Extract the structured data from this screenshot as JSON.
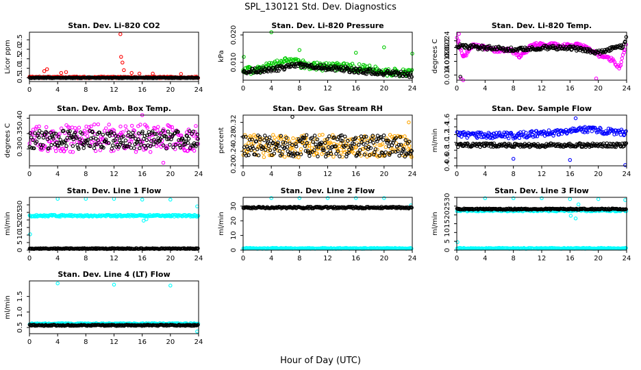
{
  "figure": {
    "title": "SPL_130121  Std. Dev. Diagnostics",
    "xlabel": "Hour of Day (UTC)"
  },
  "colors": {
    "red": "#ff0000",
    "green": "#00cc00",
    "magenta": "#ff00ff",
    "orange": "#ffa500",
    "blue": "#0000ff",
    "cyan": "#00ffff",
    "black": "#000000"
  },
  "chart_data": [
    {
      "id": "co2",
      "type": "scatter",
      "title": "Stan. Dev. Li-820 CO2",
      "ylabel": "Licor ppm",
      "xlim": [
        0,
        24
      ],
      "ylim": [
        0.3,
        2.9
      ],
      "xticks": [
        0,
        4,
        8,
        12,
        16,
        20,
        24
      ],
      "yticks": [
        0.5,
        1.0,
        1.5,
        2.0,
        2.5
      ],
      "ytick_labels": [
        "0.5",
        "1.0",
        "1.5",
        "2.0",
        "2.5"
      ],
      "series": [
        {
          "color": "red",
          "base": 0.52,
          "noise": 0.04,
          "spikes": [
            [
              2.1,
              0.85
            ],
            [
              2.5,
              0.95
            ],
            [
              4.5,
              0.75
            ],
            [
              5.2,
              0.8
            ],
            [
              12.9,
              2.8
            ],
            [
              13.0,
              1.6
            ],
            [
              13.2,
              1.3
            ],
            [
              13.4,
              0.9
            ],
            [
              14.5,
              0.75
            ],
            [
              15.6,
              0.72
            ],
            [
              17.5,
              0.72
            ],
            [
              21.5,
              0.7
            ]
          ]
        },
        {
          "color": "black",
          "base": 0.5,
          "noise": 0.02,
          "spikes": []
        }
      ]
    },
    {
      "id": "pressure",
      "type": "scatter",
      "title": "Stan. Dev. Li-820 Pressure",
      "ylabel": "kPa",
      "xlim": [
        0,
        24
      ],
      "ylim": [
        0.0035,
        0.021
      ],
      "xticks": [
        0,
        4,
        8,
        12,
        16,
        20,
        24
      ],
      "yticks": [
        0.01,
        0.02
      ],
      "ytick_labels": [
        "0.010",
        "0.020"
      ],
      "series": [
        {
          "color": "green",
          "profile": [
            [
              0,
              0.0065
            ],
            [
              3,
              0.008
            ],
            [
              6,
              0.0105
            ],
            [
              10,
              0.0085
            ],
            [
              16,
              0.0082
            ],
            [
              20,
              0.0065
            ],
            [
              24,
              0.0062
            ]
          ],
          "noise": 0.0015,
          "spikes": [
            [
              0.1,
              0.012
            ],
            [
              4.0,
              0.021
            ],
            [
              8.0,
              0.0145
            ],
            [
              16.0,
              0.0135
            ],
            [
              20.0,
              0.0155
            ],
            [
              24.0,
              0.0132
            ]
          ]
        },
        {
          "color": "black",
          "profile": [
            [
              0,
              0.0065
            ],
            [
              4,
              0.0075
            ],
            [
              8,
              0.009
            ],
            [
              12,
              0.008
            ],
            [
              16,
              0.0072
            ],
            [
              20,
              0.006
            ],
            [
              24,
              0.0055
            ]
          ],
          "noise": 0.001,
          "spikes": []
        }
      ]
    },
    {
      "id": "temp",
      "type": "scatter",
      "title": "Stan. Dev. Li-820 Temp.",
      "ylabel": "degrees C",
      "xlim": [
        0,
        24
      ],
      "ylim": [
        0.0125,
        0.0265
      ],
      "xticks": [
        0,
        4,
        8,
        12,
        16,
        20,
        24
      ],
      "yticks": [
        0.014,
        0.018,
        0.02,
        0.022,
        0.024
      ],
      "ytick_labels": [
        "0.014",
        "0.018",
        "0.020",
        "0.022",
        "0.024"
      ],
      "series": [
        {
          "color": "magenta",
          "profile": [
            [
              0,
              0.025
            ],
            [
              1,
              0.019
            ],
            [
              2,
              0.0225
            ],
            [
              4,
              0.022
            ],
            [
              6,
              0.021
            ],
            [
              7.5,
              0.0215
            ],
            [
              9,
              0.0195
            ],
            [
              10.5,
              0.0225
            ],
            [
              12,
              0.023
            ],
            [
              15,
              0.0225
            ],
            [
              17.5,
              0.023
            ],
            [
              19.5,
              0.0205
            ],
            [
              21,
              0.019
            ],
            [
              22,
              0.0185
            ],
            [
              23,
              0.016
            ],
            [
              24,
              0.0235
            ]
          ],
          "noise": 0.0006,
          "spikes": [
            [
              0.3,
              0.026
            ],
            [
              0.6,
              0.013
            ],
            [
              0.9,
              0.0125
            ],
            [
              19.7,
              0.013
            ]
          ]
        },
        {
          "color": "black",
          "profile": [
            [
              0,
              0.0225
            ],
            [
              4,
              0.022
            ],
            [
              8,
              0.0215
            ],
            [
              12,
              0.022
            ],
            [
              16,
              0.022
            ],
            [
              20,
              0.0205
            ],
            [
              23.5,
              0.0225
            ],
            [
              24,
              0.025
            ]
          ],
          "noise": 0.0006,
          "spikes": [
            [
              0.5,
              0.0135
            ]
          ]
        }
      ]
    },
    {
      "id": "ambtemp",
      "type": "scatter",
      "title": "Stan. Dev. Amb. Box Temp.",
      "ylabel": "degrees C",
      "xlim": [
        0,
        24
      ],
      "ylim": [
        0.245,
        0.41
      ],
      "xticks": [
        0,
        4,
        8,
        12,
        16,
        20,
        24
      ],
      "yticks": [
        0.3,
        0.35,
        0.4
      ],
      "ytick_labels": [
        "0.30",
        "0.35",
        "0.40"
      ],
      "series": [
        {
          "color": "magenta",
          "base": 0.335,
          "noise": 0.045,
          "spikes": [
            [
              16,
              0.41
            ],
            [
              19,
              0.255
            ]
          ]
        },
        {
          "color": "black",
          "base": 0.33,
          "noise": 0.03,
          "spikes": []
        }
      ]
    },
    {
      "id": "rh",
      "type": "scatter",
      "title": "Stan. Dev. Gas Stream RH",
      "ylabel": "percent",
      "xlim": [
        0,
        24
      ],
      "ylim": [
        0.2,
        0.34
      ],
      "xticks": [
        0,
        4,
        8,
        12,
        16,
        20,
        24
      ],
      "yticks": [
        0.2,
        0.24,
        0.28,
        0.32
      ],
      "ytick_labels": [
        "0.20",
        "0.24",
        "0.28",
        "0.32"
      ],
      "series": [
        {
          "color": "orange",
          "base": 0.255,
          "noise": 0.032,
          "spikes": [
            [
              23.5,
              0.32
            ]
          ]
        },
        {
          "color": "black",
          "base": 0.255,
          "noise": 0.03,
          "spikes": [
            [
              7,
              0.335
            ]
          ]
        }
      ]
    },
    {
      "id": "sample",
      "type": "scatter",
      "title": "Stan. Dev. Sample Flow",
      "ylabel": "ml/min",
      "xlim": [
        0,
        24
      ],
      "ylim": [
        0.4,
        1.7
      ],
      "xticks": [
        0,
        4,
        8,
        12,
        16,
        20,
        24
      ],
      "yticks": [
        0.4,
        0.6,
        0.8,
        1.0,
        1.2,
        1.4,
        1.6
      ],
      "ytick_labels": [
        "0.4",
        "0.6",
        "0.8",
        "1.0",
        "1.2",
        "1.4",
        "1.6"
      ],
      "series": [
        {
          "color": "blue",
          "profile": [
            [
              0,
              1.2
            ],
            [
              8,
              1.18
            ],
            [
              14,
              1.25
            ],
            [
              17,
              1.35
            ],
            [
              20,
              1.3
            ],
            [
              24,
              1.25
            ]
          ],
          "noise": 0.08,
          "spikes": [
            [
              8,
              0.58
            ],
            [
              16,
              0.55
            ],
            [
              23.8,
              0.42
            ],
            [
              16.8,
              1.62
            ]
          ]
        },
        {
          "color": "black",
          "base": 0.93,
          "noise": 0.05,
          "spikes": []
        }
      ]
    },
    {
      "id": "line1",
      "type": "scatter",
      "title": "Stan. Dev. Line 1 Flow",
      "ylabel": "ml/min",
      "xlim": [
        0,
        24
      ],
      "ylim": [
        0,
        35
      ],
      "xticks": [
        0,
        4,
        8,
        12,
        16,
        20,
        24
      ],
      "yticks": [
        0,
        5,
        10,
        15,
        20,
        25,
        30
      ],
      "ytick_labels": [
        "0",
        "5",
        "10",
        "15",
        "20",
        "25",
        "30"
      ],
      "series": [
        {
          "color": "cyan",
          "base": 22.8,
          "noise": 0.6,
          "spikes": [
            [
              0.1,
              10.5
            ],
            [
              4,
              34
            ],
            [
              8,
              34
            ],
            [
              12,
              34
            ],
            [
              16,
              33.5
            ],
            [
              20,
              33.5
            ],
            [
              23.8,
              29
            ],
            [
              16.2,
              19.5
            ],
            [
              16.6,
              20.5
            ]
          ]
        },
        {
          "color": "black",
          "base": 1.0,
          "noise": 0.3,
          "spikes": []
        }
      ]
    },
    {
      "id": "line2",
      "type": "scatter",
      "title": "Stan. Dev. Line 2 Flow",
      "ylabel": "ml/min",
      "xlim": [
        0,
        24
      ],
      "ylim": [
        0,
        36
      ],
      "xticks": [
        0,
        4,
        8,
        12,
        16,
        20,
        24
      ],
      "yticks": [
        0,
        10,
        20,
        30
      ],
      "ytick_labels": [
        "0",
        "10",
        "20",
        "30"
      ],
      "series": [
        {
          "color": "cyan",
          "base": 1.2,
          "noise": 0.3,
          "spikes": [
            [
              4,
              35.5
            ],
            [
              8,
              35.5
            ],
            [
              12,
              35.5
            ],
            [
              16,
              35.5
            ],
            [
              20,
              35.5
            ],
            [
              23.8,
              30.5
            ]
          ]
        },
        {
          "color": "black",
          "base": 29,
          "noise": 0.6,
          "spikes": []
        }
      ]
    },
    {
      "id": "line3",
      "type": "scatter",
      "title": "Stan. Dev. Line 3 Flow",
      "ylabel": "ml/min",
      "xlim": [
        0,
        24
      ],
      "ylim": [
        0,
        30
      ],
      "xticks": [
        0,
        4,
        8,
        12,
        16,
        20,
        24
      ],
      "yticks": [
        0,
        5,
        10,
        15,
        20,
        25,
        30
      ],
      "ytick_labels": [
        "0",
        "5",
        "10",
        "15",
        "20",
        "25",
        "30"
      ],
      "series": [
        {
          "color": "cyan",
          "base": 1.0,
          "noise": 0.25,
          "spikes": [
            [
              0.1,
              4.5
            ],
            [
              4,
              29.5
            ],
            [
              8,
              29.5
            ],
            [
              12,
              29.5
            ],
            [
              16,
              29
            ],
            [
              20,
              29
            ],
            [
              23.8,
              28.5
            ],
            [
              17.2,
              26
            ]
          ]
        },
        {
          "color": "cyan",
          "base": 22.5,
          "noise": 0.5,
          "spikes": [
            [
              16.1,
              19.5
            ],
            [
              16.8,
              18
            ]
          ]
        },
        {
          "color": "black",
          "base": 23.3,
          "noise": 0.35,
          "spikes": []
        }
      ]
    },
    {
      "id": "line4",
      "type": "scatter",
      "title": "Stan. Dev. Line 4 (LT) Flow",
      "ylabel": "ml/min",
      "xlim": [
        0,
        24
      ],
      "ylim": [
        0.3,
        2.0
      ],
      "xticks": [
        0,
        4,
        8,
        12,
        16,
        20,
        24
      ],
      "yticks": [
        0.5,
        1.0,
        1.5
      ],
      "ytick_labels": [
        "0.5",
        "1.0",
        "1.5"
      ],
      "series": [
        {
          "color": "cyan",
          "base": 0.62,
          "noise": 0.02,
          "spikes": [
            [
              4,
              1.92
            ],
            [
              12,
              1.88
            ],
            [
              20,
              1.85
            ],
            [
              23.8,
              0.37
            ]
          ]
        },
        {
          "color": "black",
          "base": 0.57,
          "noise": 0.02,
          "spikes": []
        }
      ]
    }
  ]
}
